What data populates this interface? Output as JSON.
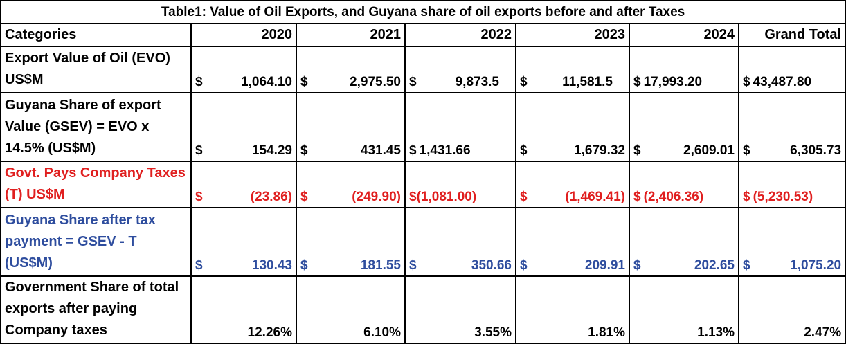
{
  "table": {
    "title": "Table1: Value of Oil Exports, and Guyana share of oil exports before and after Taxes",
    "headers": [
      "Categories",
      "2020",
      "2021",
      "2022",
      "2023",
      "2024",
      "Grand Total"
    ],
    "rows": [
      {
        "label": "Export Value of Oil (EVO) US$M",
        "color": "#000000",
        "cells": [
          {
            "sym": "$",
            "amt": "1,064.10"
          },
          {
            "sym": "$",
            "amt": "2,975.50"
          },
          {
            "sym": "$",
            "amt": "9,873.5"
          },
          {
            "sym": "$",
            "amt": "11,581.5"
          },
          {
            "sym": "$",
            "amt": "17,993.20"
          },
          {
            "sym": "$",
            "amt": "43,487.80"
          }
        ]
      },
      {
        "label": "Guyana Share of export Value (GSEV) = EVO x 14.5% (US$M)",
        "color": "#000000",
        "cells": [
          {
            "sym": "$",
            "amt": "154.29"
          },
          {
            "sym": "$",
            "amt": "431.45"
          },
          {
            "sym": "$",
            "amt": "1,431.66"
          },
          {
            "sym": "$",
            "amt": "1,679.32"
          },
          {
            "sym": "$",
            "amt": "2,609.01"
          },
          {
            "sym": "$",
            "amt": "6,305.73"
          }
        ]
      },
      {
        "label": "Govt. Pays Company Taxes (T) US$M",
        "color": "#e01f1f",
        "cells": [
          {
            "sym": "$",
            "amt": "(23.86)"
          },
          {
            "sym": "$",
            "amt": "(249.90)"
          },
          {
            "sym": "$",
            "amt": "(1,081.00)"
          },
          {
            "sym": "$",
            "amt": "(1,469.41)"
          },
          {
            "sym": "$",
            "amt": "(2,406.36)"
          },
          {
            "sym": "$",
            "amt": "(5,230.53)"
          }
        ]
      },
      {
        "label": "Guyana Share after tax payment = GSEV - T (US$M)",
        "color": "#2e4d9e",
        "cells": [
          {
            "sym": "$",
            "amt": "130.43"
          },
          {
            "sym": "$",
            "amt": "181.55"
          },
          {
            "sym": "$",
            "amt": "350.66"
          },
          {
            "sym": "$",
            "amt": "209.91"
          },
          {
            "sym": "$",
            "amt": "202.65"
          },
          {
            "sym": "$",
            "amt": "1,075.20"
          }
        ]
      },
      {
        "label": "Government Share of total exports after paying Company taxes",
        "color": "#000000",
        "cells": [
          "12.26%",
          "6.10%",
          "3.55%",
          "1.81%",
          "1.13%",
          "2.47%"
        ]
      }
    ]
  }
}
